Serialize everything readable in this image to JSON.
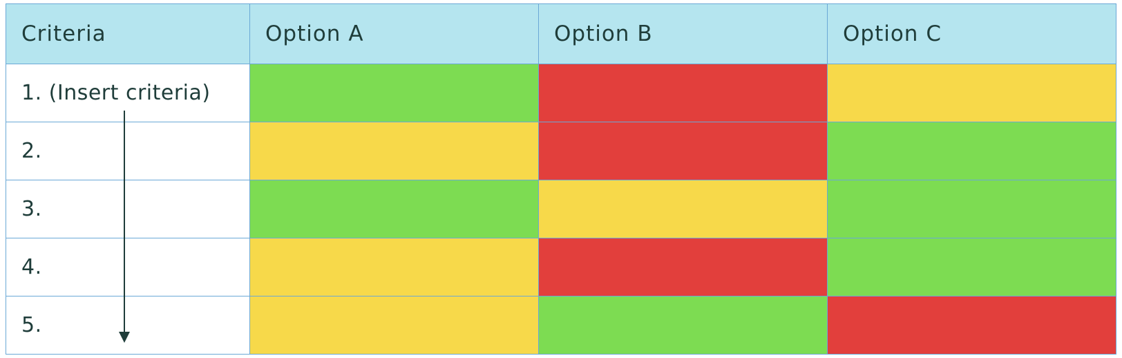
{
  "header": {
    "criteria": "Criteria",
    "options": [
      "Option A",
      "Option B",
      "Option C"
    ]
  },
  "rows": [
    {
      "label": "1. (Insert criteria)",
      "ratings": [
        "green",
        "red",
        "yellow"
      ]
    },
    {
      "label": "2.",
      "ratings": [
        "yellow",
        "red",
        "green"
      ]
    },
    {
      "label": "3.",
      "ratings": [
        "green",
        "yellow",
        "green"
      ]
    },
    {
      "label": "4.",
      "ratings": [
        "yellow",
        "red",
        "green"
      ]
    },
    {
      "label": "5.",
      "ratings": [
        "yellow",
        "green",
        "red"
      ]
    }
  ],
  "colors": {
    "header_bg": "#b5e5ef",
    "green": "#7ddc52",
    "yellow": "#f7d94a",
    "red": "#e23f3c",
    "grid": "#6aa8d6",
    "text": "#1f3d3a",
    "arrow": "#1f3d3a"
  },
  "icons": {
    "arrow": "down-arrow-icon"
  }
}
